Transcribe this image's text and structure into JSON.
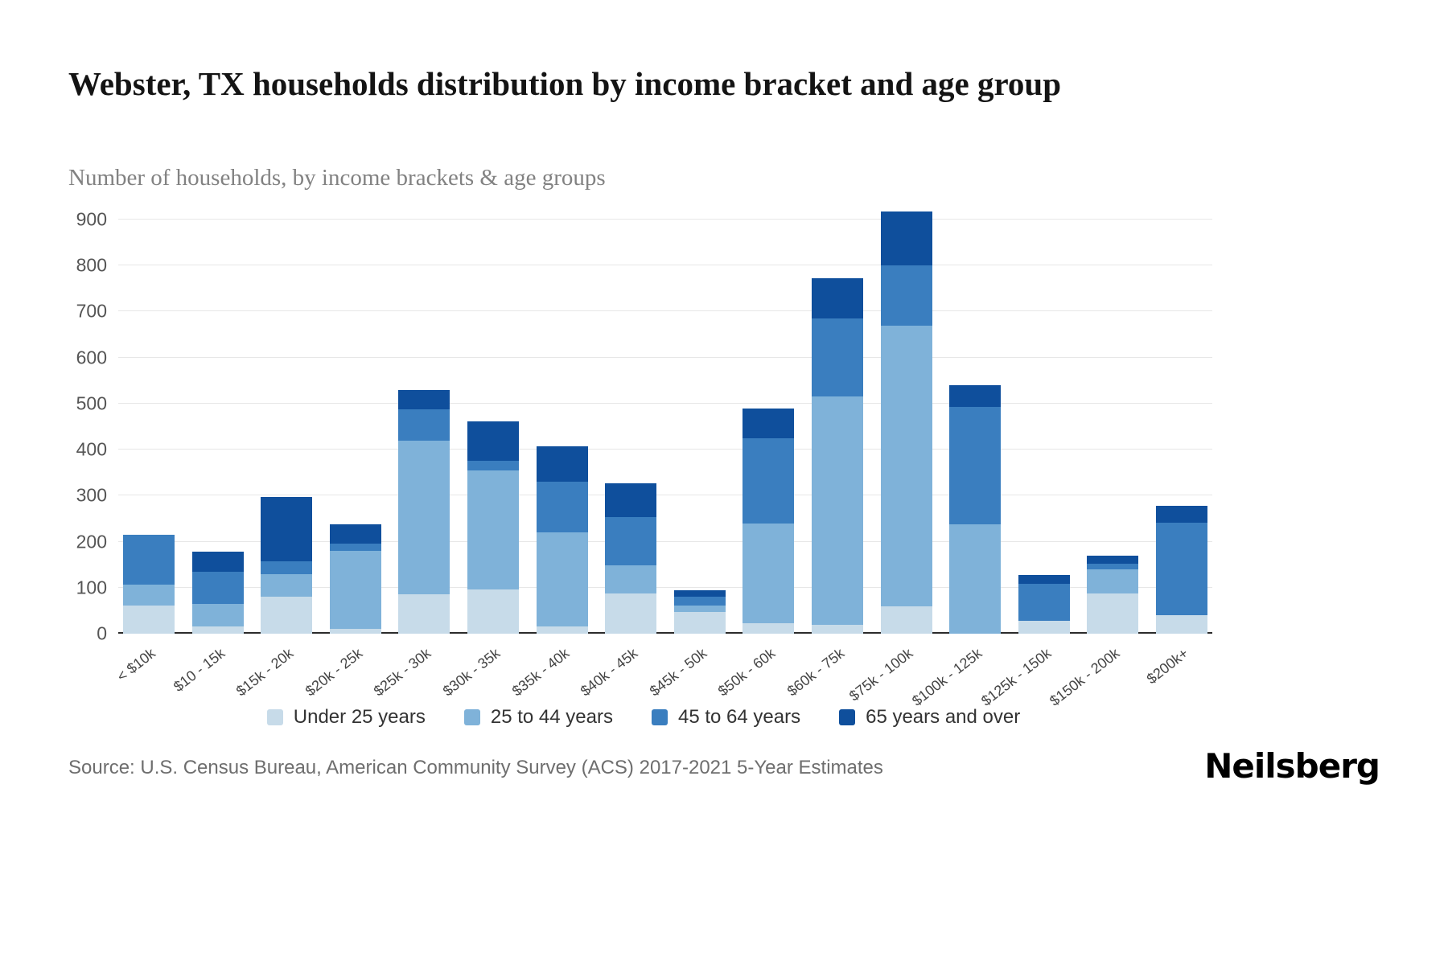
{
  "title": "Webster, TX households distribution by income bracket and age group",
  "subtitle": "Number of households, by income brackets & age groups",
  "source": "Source: U.S. Census Bureau, American Community Survey (ACS) 2017-2021 5-Year Estimates",
  "brand": "Neilsberg",
  "chart_data": {
    "type": "bar",
    "stacked": true,
    "title": "Webster, TX households distribution by income bracket and age group",
    "subtitle": "Number of households, by income brackets & age groups",
    "xlabel": "",
    "ylabel": "Number of households",
    "ylim": [
      0,
      950
    ],
    "yticks": [
      0,
      100,
      200,
      300,
      400,
      500,
      600,
      700,
      800,
      900
    ],
    "grid": true,
    "legend_position": "bottom",
    "categories": [
      "< $10k",
      "$10 - 15k",
      "$15k - 20k",
      "$20k - 25k",
      "$25k - 30k",
      "$30k - 35k",
      "$35k - 40k",
      "$40k - 45k",
      "$45k - 50k",
      "$50k - 60k",
      "$60k - 75k",
      "$75k - 100k",
      "$100k - 125k",
      "$125k - 150k",
      "$150k - 200k",
      "$200k+"
    ],
    "series": [
      {
        "name": "Under 25 years",
        "color": "#c7dbe9",
        "values": [
          62,
          15,
          80,
          10,
          85,
          97,
          15,
          87,
          48,
          22,
          20,
          60,
          0,
          28,
          88,
          40
        ]
      },
      {
        "name": "25 to 44 years",
        "color": "#7fb2d9",
        "values": [
          45,
          50,
          50,
          170,
          335,
          258,
          205,
          61,
          14,
          218,
          495,
          610,
          238,
          0,
          52,
          0
        ]
      },
      {
        "name": "45 to 64 years",
        "color": "#3a7ebf",
        "values": [
          108,
          70,
          28,
          15,
          67,
          20,
          110,
          105,
          18,
          185,
          170,
          130,
          254,
          80,
          12,
          202
        ]
      },
      {
        "name": "65 years and over",
        "color": "#0f4f9c",
        "values": [
          0,
          43,
          139,
          43,
          43,
          87,
          78,
          74,
          15,
          65,
          88,
          117,
          48,
          19,
          18,
          36
        ]
      }
    ]
  }
}
